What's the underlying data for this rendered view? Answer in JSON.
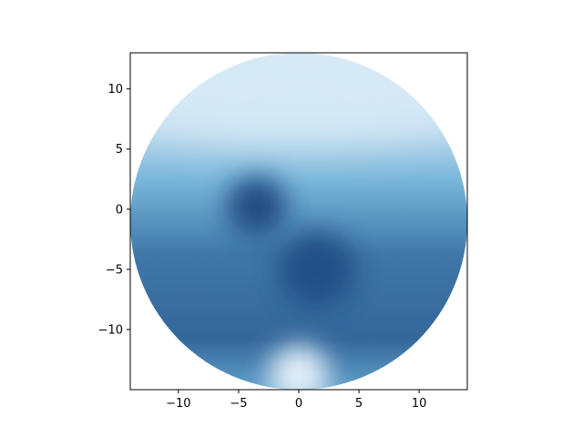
{
  "chart_data": {
    "type": "heatmap",
    "title": "",
    "xlabel": "",
    "ylabel": "",
    "xlim": [
      -14,
      14
    ],
    "ylim": [
      -15,
      13
    ],
    "xticks": [
      -10,
      -5,
      0,
      5,
      10
    ],
    "yticks": [
      10,
      5,
      0,
      -5,
      -10
    ],
    "xtick_labels": [
      "−10",
      "−5",
      "0",
      "5",
      "10"
    ],
    "ytick_labels": [
      "10",
      "5",
      "0",
      "−5",
      "−10"
    ],
    "colormap": "Blues",
    "colors": {
      "low": "#f7fbff",
      "mid": "#6baed6",
      "high": "#08306b"
    },
    "masked_region": {
      "shape": "disk",
      "center": [
        0,
        -1
      ],
      "radius": 14
    },
    "features": [
      {
        "kind": "dark-blob",
        "center": [
          -3.5,
          0.3
        ],
        "radius": 2.5,
        "level": 0.95
      },
      {
        "kind": "dark-blob",
        "center": [
          1.5,
          -5
        ],
        "radius": 3.2,
        "level": 0.9
      },
      {
        "kind": "light-band",
        "center_y": 9,
        "level": 0.1
      },
      {
        "kind": "light-patch",
        "center": [
          0,
          -13.8
        ],
        "radius": 2.5,
        "level": 0.05
      }
    ],
    "grid": false,
    "legend": "none"
  }
}
